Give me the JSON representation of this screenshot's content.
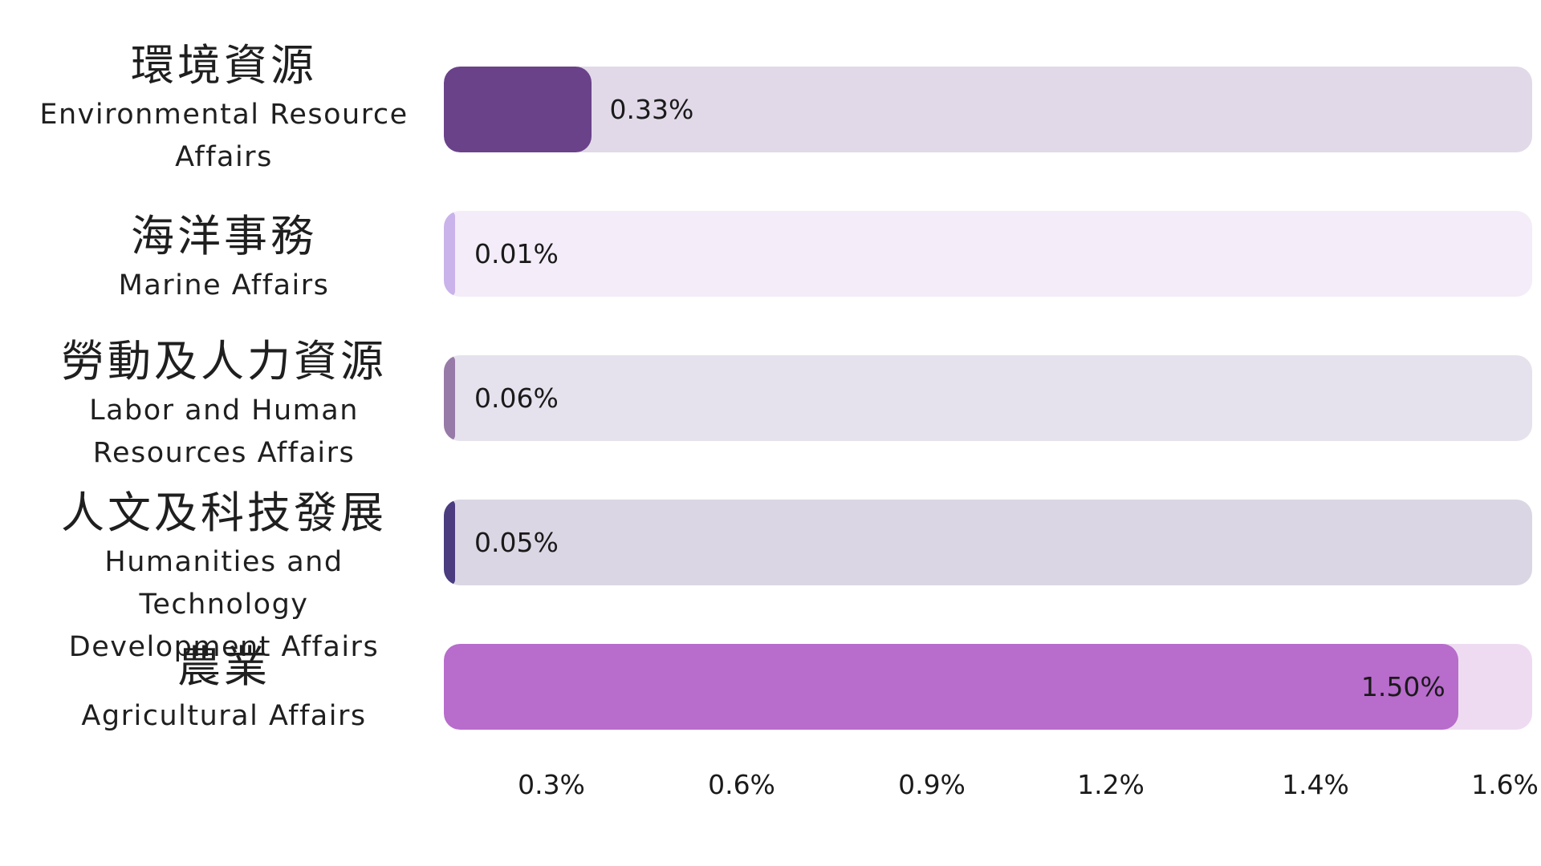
{
  "chart_data": {
    "type": "bar",
    "orientation": "horizontal",
    "title": "",
    "xlabel": "",
    "ylabel": "",
    "xlim": [
      0.13,
      1.6
    ],
    "unit": "%",
    "categories": [
      {
        "zh": "環境資源",
        "en_lines": [
          "Environmental Resource",
          "Affairs"
        ],
        "value": 0.33,
        "value_label": "0.33%",
        "fill_color": "#6a4289",
        "track_color": "#e1d9e8"
      },
      {
        "zh": "海洋事務",
        "en_lines": [
          "Marine Affairs"
        ],
        "value": 0.01,
        "value_label": "0.01%",
        "fill_color": "#c9b3ea",
        "track_color": "#f4ecf8"
      },
      {
        "zh": "勞動及人力資源",
        "en_lines": [
          "Labor and Human",
          "Resources Affairs"
        ],
        "value": 0.06,
        "value_label": "0.06%",
        "fill_color": "#977aa7",
        "track_color": "#e6e2ed"
      },
      {
        "zh": "人文及科技發展",
        "en_lines": [
          "Humanities and Technology",
          "Development Affairs"
        ],
        "value": 0.05,
        "value_label": "0.05%",
        "fill_color": "#4a3c7f",
        "track_color": "#dbd6e4"
      },
      {
        "zh": "農業",
        "en_lines": [
          "Agricultural Affairs"
        ],
        "value": 1.5,
        "value_label": "1.50%",
        "fill_color": "#b86ccc",
        "track_color": "#eedbf1"
      }
    ],
    "x_ticks": [
      {
        "label": "0.3%",
        "value": 0.3
      },
      {
        "label": "0.6%",
        "value": 0.6
      },
      {
        "label": "0.9%",
        "value": 0.9
      },
      {
        "label": "1.2%",
        "value": 1.2
      },
      {
        "label": "1.4%",
        "value": 1.4
      },
      {
        "label": "1.6%",
        "value": 1.6
      }
    ]
  }
}
